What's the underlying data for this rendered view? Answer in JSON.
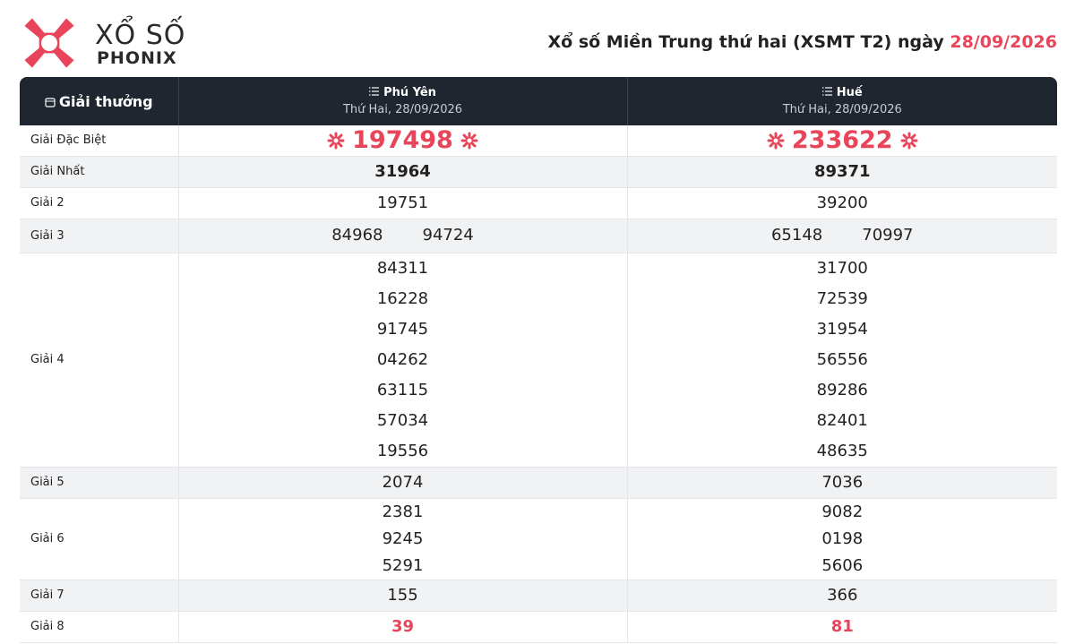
{
  "header": {
    "logo": {
      "line1": "XỔ SỐ",
      "line2": "PHONIX"
    },
    "title": "Xổ số Miền Trung thứ hai (XSMT T2) ngày",
    "date": "28/09/2026"
  },
  "table": {
    "prize_header": "Giải thưởng",
    "columns": [
      {
        "province": "Phú Yên",
        "date": "Thứ Hai, 28/09/2026"
      },
      {
        "province": "Huế",
        "date": "Thứ Hai, 28/09/2026"
      }
    ],
    "rows": [
      {
        "label": "Giải Đặc Biệt",
        "values": [
          [
            "197498"
          ],
          [
            "233622"
          ]
        ]
      },
      {
        "label": "Giải Nhất",
        "values": [
          [
            "31964"
          ],
          [
            "89371"
          ]
        ]
      },
      {
        "label": "Giải 2",
        "values": [
          [
            "19751"
          ],
          [
            "39200"
          ]
        ]
      },
      {
        "label": "Giải 3",
        "values": [
          [
            "84968",
            "94724"
          ],
          [
            "65148",
            "70997"
          ]
        ]
      },
      {
        "label": "Giải 4",
        "values": [
          [
            "84311",
            "16228",
            "91745",
            "04262",
            "63115",
            "57034",
            "19556"
          ],
          [
            "31700",
            "72539",
            "31954",
            "56556",
            "89286",
            "82401",
            "48635"
          ]
        ]
      },
      {
        "label": "Giải 5",
        "values": [
          [
            "2074"
          ],
          [
            "7036"
          ]
        ]
      },
      {
        "label": "Giải 6",
        "values": [
          [
            "2381",
            "9245",
            "5291"
          ],
          [
            "9082",
            "0198",
            "5606"
          ]
        ]
      },
      {
        "label": "Giải 7",
        "values": [
          [
            "155"
          ],
          [
            "366"
          ]
        ]
      },
      {
        "label": "Giải 8",
        "values": [
          [
            "39"
          ],
          [
            "81"
          ]
        ]
      }
    ]
  }
}
